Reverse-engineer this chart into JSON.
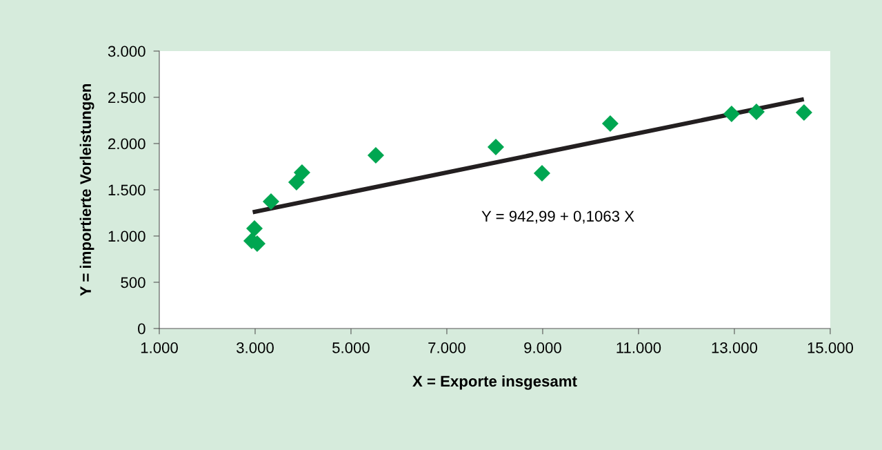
{
  "chart_data": {
    "type": "scatter",
    "xlabel": "X = Exporte insgesamt",
    "ylabel": "Y = importierte Vorleistungen",
    "annotations": [
      "Y = 942,99 + 0,1063 X"
    ],
    "series": [
      {
        "color": "#00a651",
        "marker": "diamond",
        "x": [
          2928,
          2986,
          3043,
          3331,
          3863,
          3978,
          5518,
          8022,
          8986,
          10410,
          12942,
          13460,
          14453
        ],
        "values": [
          948,
          1082,
          918,
          1373,
          1582,
          1687,
          1873,
          1963,
          1679,
          2216,
          2321,
          2343,
          2336
        ]
      },
      {
        "type": "line",
        "color": "#231f20",
        "marker": "none",
        "line_style": "solid",
        "x": [
          2950,
          14450
        ],
        "values": [
          1257,
          2479
        ]
      }
    ],
    "xlim": [
      1000,
      15000
    ],
    "ylim": [
      0,
      3000
    ],
    "xticks": [
      {
        "value": 1000,
        "label": "1.000"
      },
      {
        "value": 3000,
        "label": "3.000"
      },
      {
        "value": 5000,
        "label": "5.000"
      },
      {
        "value": 7000,
        "label": "7.000"
      },
      {
        "value": 9000,
        "label": "9.000"
      },
      {
        "value": 11000,
        "label": "11.000"
      },
      {
        "value": 13000,
        "label": "13.000"
      },
      {
        "value": 15000,
        "label": "15.000"
      }
    ],
    "yticks": [
      0,
      500,
      {
        "value": 1000,
        "label": "1.000"
      },
      {
        "value": 1500,
        "label": "1.500"
      },
      {
        "value": 2000,
        "label": "2.000"
      },
      {
        "value": 2500,
        "label": "2.500"
      },
      {
        "value": 3000,
        "label": "3.000"
      }
    ],
    "grid": false,
    "legend": false
  }
}
